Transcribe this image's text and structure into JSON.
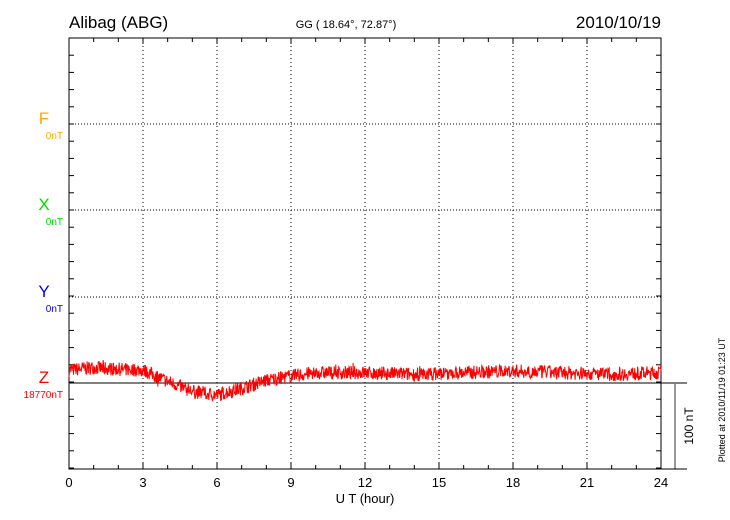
{
  "chart_data": {
    "type": "line",
    "title": "Alibag (ABG)",
    "subtitle": "GG ( 18.64°,  72.87°)",
    "date": "2010/10/19",
    "xlabel": "U T (hour)",
    "xlim": [
      0,
      24
    ],
    "xticks": [
      "0",
      "3",
      "6",
      "9",
      "12",
      "15",
      "18",
      "21",
      "24"
    ],
    "scale_label": "100 nT",
    "footer": "Plotted at 2010/11/19 01:23 UT",
    "grid": true,
    "components": [
      {
        "name": "F",
        "baseline": "0nT",
        "color": "#ffaa00"
      },
      {
        "name": "X",
        "baseline": "0nT",
        "color": "#00dd00"
      },
      {
        "name": "Y",
        "baseline": "0nT",
        "color": "#0000ff"
      },
      {
        "name": "Z",
        "baseline": "18770nT",
        "color": "#ff0000"
      }
    ],
    "series": [
      {
        "name": "Z",
        "unit": "nT offset from baseline",
        "noise_amplitude": 8,
        "x": [
          0,
          1,
          2,
          3,
          4,
          5,
          6,
          7,
          8,
          9,
          10,
          12,
          14,
          16,
          18,
          20,
          22,
          24
        ],
        "values": [
          15,
          18,
          16,
          15,
          2,
          -10,
          -14,
          -6,
          3,
          8,
          12,
          12,
          10,
          12,
          14,
          12,
          10,
          12
        ]
      }
    ]
  }
}
